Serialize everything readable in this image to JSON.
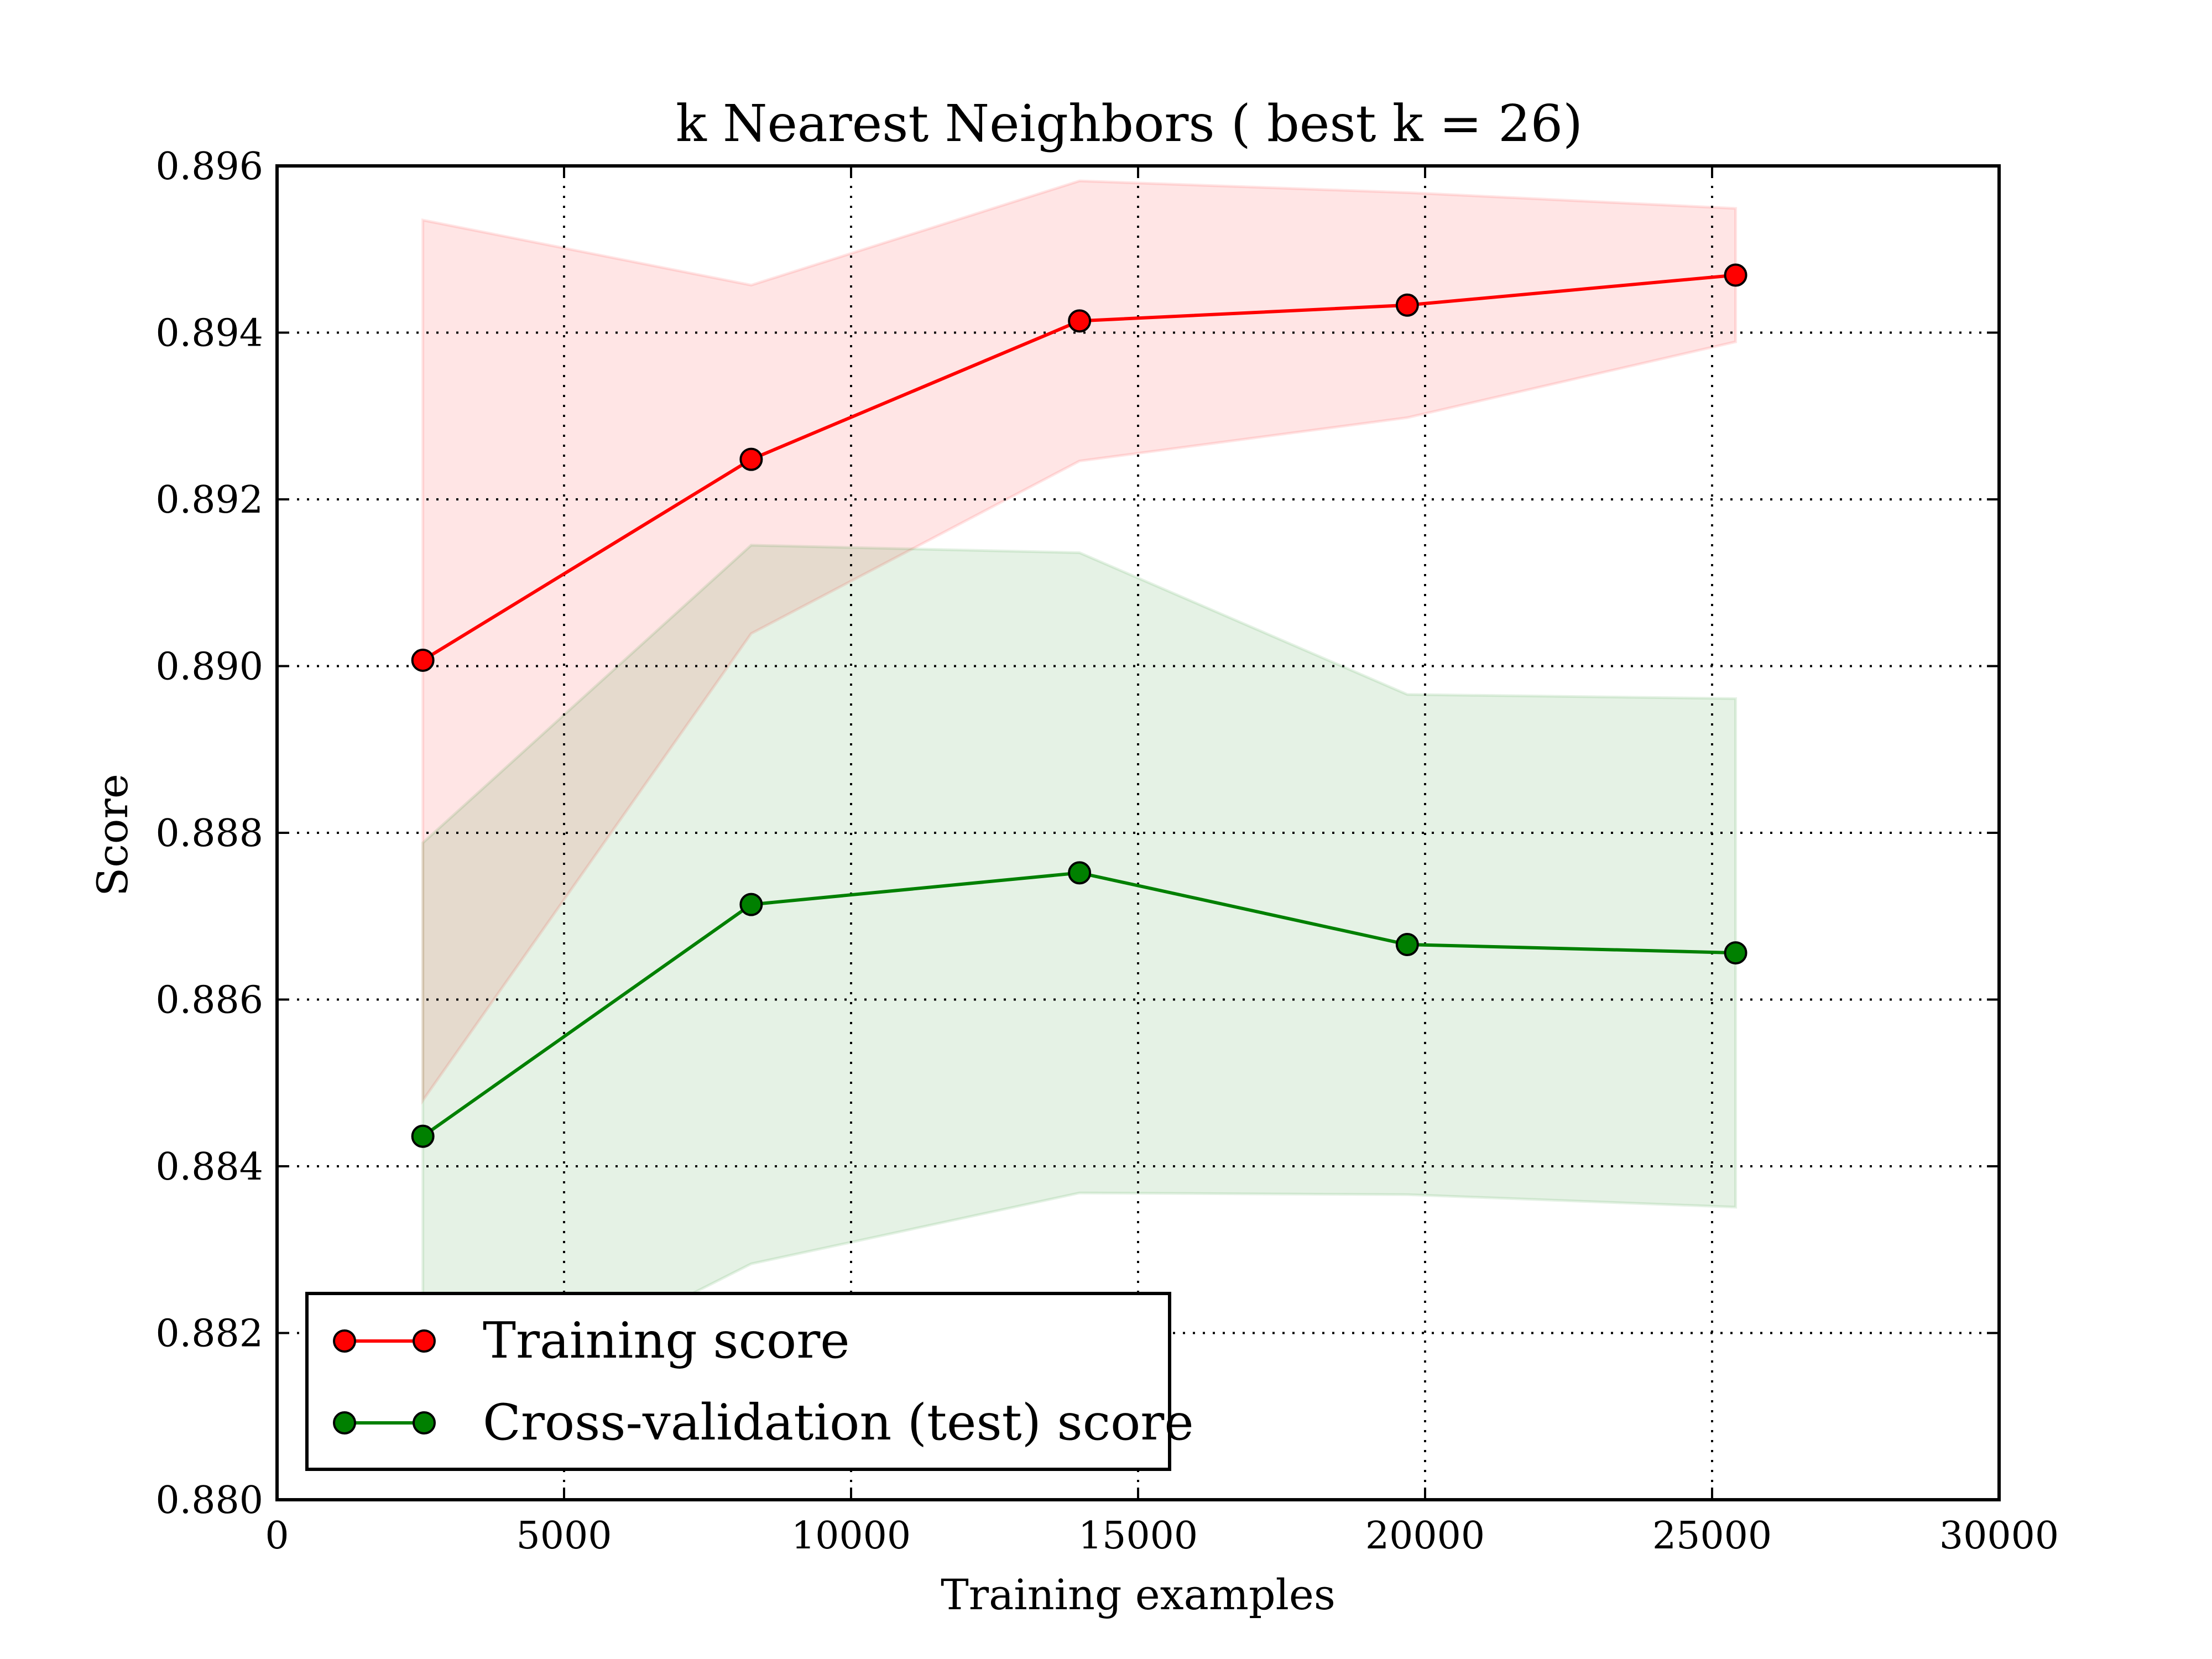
{
  "chart_data": {
    "type": "line",
    "title": "k Nearest Neighbors ( best k = 26)",
    "xlabel": "Training examples",
    "ylabel": "Score",
    "xlim": [
      0,
      30000
    ],
    "ylim": [
      0.88,
      0.896
    ],
    "xticks": [
      0,
      5000,
      10000,
      15000,
      20000,
      25000,
      30000
    ],
    "xtick_labels": [
      "0",
      "5000",
      "10000",
      "15000",
      "20000",
      "25000",
      "30000"
    ],
    "yticks": [
      0.88,
      0.882,
      0.884,
      0.886,
      0.888,
      0.89,
      0.892,
      0.894,
      0.896
    ],
    "ytick_labels": [
      "0.880",
      "0.882",
      "0.884",
      "0.886",
      "0.888",
      "0.890",
      "0.892",
      "0.894",
      "0.896"
    ],
    "grid": true,
    "legend_position": "lower-left",
    "x": [
      2540,
      8260,
      13980,
      19690,
      25410
    ],
    "series": [
      {
        "name": "Training score",
        "color": "#ff0000",
        "values": [
          0.89007,
          0.89248,
          0.89414,
          0.89433,
          0.89469
        ],
        "band_upper": [
          0.89535,
          0.89457,
          0.89582,
          0.89568,
          0.89549
        ],
        "band_lower": [
          0.88479,
          0.89039,
          0.89246,
          0.89298,
          0.89389
        ],
        "band_color": "#ff0000"
      },
      {
        "name": "Cross-validation (test) score",
        "color": "#008000",
        "values": [
          0.88436,
          0.88714,
          0.88752,
          0.88666,
          0.88656
        ],
        "band_upper": [
          0.88788,
          0.89145,
          0.89136,
          0.88966,
          0.88961
        ],
        "band_lower": [
          0.88084,
          0.88283,
          0.88368,
          0.88366,
          0.88351
        ],
        "band_color": "#008000"
      }
    ]
  }
}
